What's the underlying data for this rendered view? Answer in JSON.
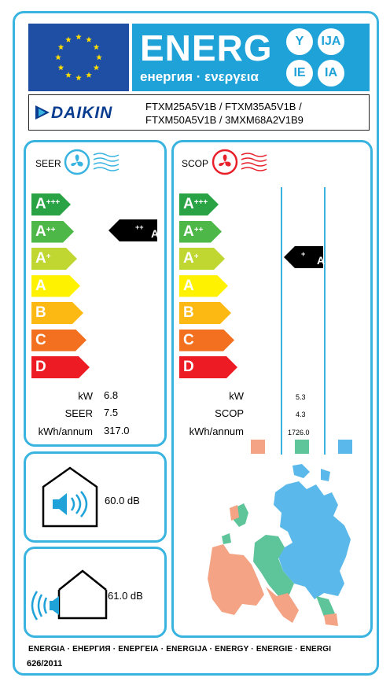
{
  "header": {
    "energy_word": "ENERG",
    "energy_sub": "енергия · ενεργεια",
    "bubbles": [
      "Y",
      "IJA",
      "IE",
      "IA"
    ]
  },
  "supplier": {
    "name": "DAIKIN",
    "models_line1": "FTXM25A5V1B / FTXM35A5V1B /",
    "models_line2": "FTXM50A5V1B / 3MXM68A2V1B9"
  },
  "cooling": {
    "title": "SEER",
    "classes": [
      {
        "letter": "A",
        "plus": "+++",
        "color": "#2aa345"
      },
      {
        "letter": "A",
        "plus": "++",
        "color": "#4db848"
      },
      {
        "letter": "A",
        "plus": "+",
        "color": "#bfd730"
      },
      {
        "letter": "A",
        "plus": "",
        "color": "#fff200"
      },
      {
        "letter": "B",
        "plus": "",
        "color": "#fdb913"
      },
      {
        "letter": "C",
        "plus": "",
        "color": "#f37021"
      },
      {
        "letter": "D",
        "plus": "",
        "color": "#ed1c24"
      }
    ],
    "rating_letter": "A",
    "rating_plus": "++",
    "rows": [
      {
        "label": "kW",
        "value": "6.8"
      },
      {
        "label": "SEER",
        "value": "7.5"
      },
      {
        "label": "kWh/annum",
        "value": "317.0"
      }
    ]
  },
  "heating": {
    "title": "SCOP",
    "classes": [
      {
        "letter": "A",
        "plus": "+++",
        "color": "#2aa345"
      },
      {
        "letter": "A",
        "plus": "++",
        "color": "#4db848"
      },
      {
        "letter": "A",
        "plus": "+",
        "color": "#bfd730"
      },
      {
        "letter": "A",
        "plus": "",
        "color": "#fff200"
      },
      {
        "letter": "B",
        "plus": "",
        "color": "#fdb913"
      },
      {
        "letter": "C",
        "plus": "",
        "color": "#f37021"
      },
      {
        "letter": "D",
        "plus": "",
        "color": "#ed1c24"
      }
    ],
    "rating_letter": "A",
    "rating_plus": "+",
    "rows": [
      {
        "label": "kW",
        "value": "5.3"
      },
      {
        "label": "SCOP",
        "value": "4.3"
      },
      {
        "label": "kWh/annum",
        "value": "1726.0"
      }
    ],
    "zone_colors": [
      "#f4a384",
      "#5ec49a",
      "#5bb8ea"
    ]
  },
  "noise": {
    "indoor_db": "60.0 dB",
    "outdoor_db": "61.0 dB"
  },
  "footer": {
    "languages": "ENERGIA · ЕНЕРГИЯ · ΕΝΕΡΓΕΙΑ · ENERGIJA · ENERGY · ENERGIE · ENERGI",
    "regulation": "626/2011"
  },
  "colors": {
    "accent": "#39b3e0",
    "eu_blue": "#1f4fa5",
    "energ_blue": "#1ea2d8",
    "stars": "#ffdd00"
  }
}
